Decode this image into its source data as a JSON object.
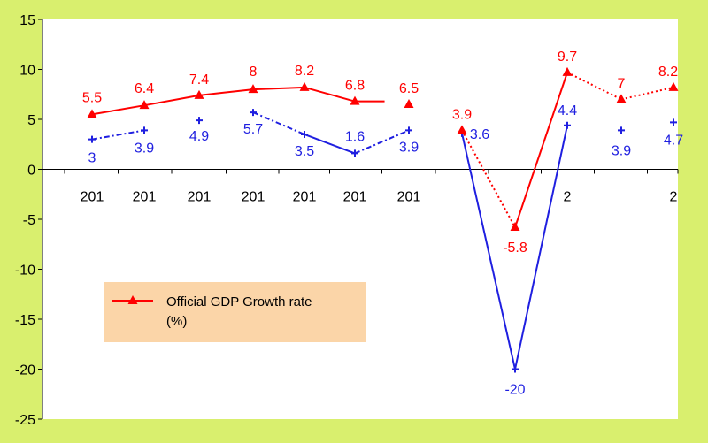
{
  "chart_data": {
    "type": "line",
    "title": "",
    "xlabel": "",
    "ylabel": "",
    "ylim": [
      -25,
      15
    ],
    "yticks": [
      15,
      10,
      5,
      0,
      -5,
      -10,
      -15,
      -20,
      -25
    ],
    "grid": false,
    "legend_placement": "lower-left",
    "categories": [
      "201",
      "201",
      "201",
      "201",
      "201",
      "201",
      "201",
      "",
      "",
      "2",
      "",
      "2"
    ],
    "series": [
      {
        "name": "Official GDP Growth rate (%)",
        "legend_line1": "Official GDP Growth rate",
        "legend_line2": "(%)",
        "color": "#ff0000",
        "marker": "triangle",
        "values": [
          5.5,
          6.4,
          7.4,
          8,
          8.2,
          6.8,
          6.5,
          3.9,
          -5.8,
          9.7,
          7,
          8.2
        ],
        "labels": [
          "5.5",
          "6.4",
          "7.4",
          "8",
          "8.2",
          "6.8",
          "6.5",
          "3.9",
          "-5.8",
          "9.7",
          "7",
          "8.2"
        ]
      },
      {
        "name": "",
        "color": "#1f1fe0",
        "marker": "plus",
        "values": [
          3,
          3.9,
          4.9,
          5.7,
          3.5,
          1.6,
          3.9,
          3.6,
          -20,
          4.4,
          3.9,
          4.7
        ],
        "labels": [
          "3",
          "3.9",
          "4.9",
          "5.7",
          "3.5",
          "1.6",
          "3.9",
          "3.6",
          "-20",
          "4.4",
          "3.9",
          "4.7"
        ]
      }
    ]
  },
  "colors": {
    "page_background": "#d9ef6e",
    "plot_background": "#ffffff",
    "legend_background": "#fbd5a8"
  }
}
